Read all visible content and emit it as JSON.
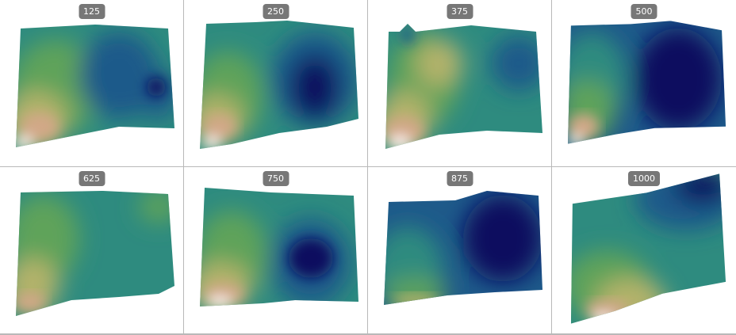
{
  "panels": [
    {
      "label": "125"
    },
    {
      "label": "250"
    },
    {
      "label": "375"
    },
    {
      "label": "500"
    },
    {
      "label": "625"
    },
    {
      "label": "750"
    },
    {
      "label": "875"
    },
    {
      "label": "1000"
    }
  ],
  "colors": {
    "badge_background": "#777777",
    "badge_text": "#ffffff",
    "divider": "#b9b9b9",
    "colormap": [
      "#08115e",
      "#1e5a8a",
      "#2e8b7f",
      "#5fa35a",
      "#b3b26a",
      "#d2a887",
      "#fbf2f0"
    ]
  }
}
